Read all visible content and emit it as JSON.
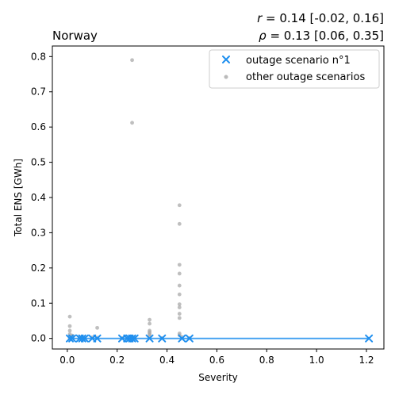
{
  "chart_data": {
    "type": "scatter",
    "title_left": "Norway",
    "title_right": {
      "line1": {
        "symbol": "r",
        "text": " = 0.14 [-0.02, 0.16]"
      },
      "line2": {
        "symbol": "ρ",
        "text": " = 0.13 [0.06, 0.35]"
      }
    },
    "xlabel": "Severity",
    "ylabel": "Total ENS [GWh]",
    "xlim": [
      -0.06,
      1.27
    ],
    "ylim": [
      -0.03,
      0.83
    ],
    "xticks": [
      0.0,
      0.2,
      0.4,
      0.6,
      0.8,
      1.0,
      1.2
    ],
    "xtick_labels": [
      "0.0",
      "0.2",
      "0.4",
      "0.6",
      "0.8",
      "1.0",
      "1.2"
    ],
    "yticks": [
      0.0,
      0.1,
      0.2,
      0.3,
      0.4,
      0.5,
      0.6,
      0.7,
      0.8
    ],
    "ytick_labels": [
      "0.0",
      "0.1",
      "0.2",
      "0.3",
      "0.4",
      "0.5",
      "0.6",
      "0.7",
      "0.8"
    ],
    "grid": false,
    "legend_position": "top-right",
    "colors": {
      "series1": "#1f8fef",
      "others": "#a9a9a9",
      "fit": "#1f8fef"
    },
    "series": [
      {
        "name": "outage scenario n°1",
        "marker": "x",
        "points": [
          [
            0.01,
            0.0
          ],
          [
            0.02,
            0.0
          ],
          [
            0.05,
            0.0
          ],
          [
            0.06,
            0.0
          ],
          [
            0.07,
            0.0
          ],
          [
            0.1,
            0.0
          ],
          [
            0.12,
            0.0
          ],
          [
            0.22,
            0.0
          ],
          [
            0.24,
            0.0
          ],
          [
            0.25,
            0.0
          ],
          [
            0.26,
            0.0
          ],
          [
            0.27,
            0.0
          ],
          [
            0.33,
            0.0
          ],
          [
            0.38,
            0.0
          ],
          [
            0.46,
            0.0
          ],
          [
            0.49,
            0.0
          ],
          [
            1.21,
            0.0
          ]
        ]
      },
      {
        "name": "other outage scenarios",
        "marker": "dot",
        "points": [
          [
            0.01,
            0.062
          ],
          [
            0.01,
            0.035
          ],
          [
            0.01,
            0.022
          ],
          [
            0.01,
            0.012
          ],
          [
            0.01,
            0.005
          ],
          [
            0.01,
            0.0
          ],
          [
            0.02,
            0.008
          ],
          [
            0.02,
            0.002
          ],
          [
            0.05,
            0.004
          ],
          [
            0.06,
            0.002
          ],
          [
            0.07,
            0.001
          ],
          [
            0.1,
            0.003
          ],
          [
            0.12,
            0.03
          ],
          [
            0.12,
            0.002
          ],
          [
            0.22,
            0.001
          ],
          [
            0.24,
            0.001
          ],
          [
            0.26,
            0.79
          ],
          [
            0.26,
            0.612
          ],
          [
            0.26,
            0.004
          ],
          [
            0.27,
            0.002
          ],
          [
            0.33,
            0.053
          ],
          [
            0.33,
            0.042
          ],
          [
            0.33,
            0.022
          ],
          [
            0.33,
            0.018
          ],
          [
            0.33,
            0.014
          ],
          [
            0.33,
            0.01
          ],
          [
            0.33,
            0.004
          ],
          [
            0.38,
            0.001
          ],
          [
            0.45,
            0.378
          ],
          [
            0.45,
            0.325
          ],
          [
            0.45,
            0.209
          ],
          [
            0.45,
            0.184
          ],
          [
            0.45,
            0.15
          ],
          [
            0.45,
            0.125
          ],
          [
            0.45,
            0.097
          ],
          [
            0.45,
            0.088
          ],
          [
            0.45,
            0.07
          ],
          [
            0.45,
            0.058
          ],
          [
            0.45,
            0.014
          ],
          [
            0.45,
            0.009
          ],
          [
            0.46,
            0.004
          ],
          [
            0.49,
            0.001
          ]
        ]
      }
    ],
    "fit_line": {
      "x": [
        0.01,
        1.21
      ],
      "y": [
        0.0,
        0.0
      ]
    }
  }
}
